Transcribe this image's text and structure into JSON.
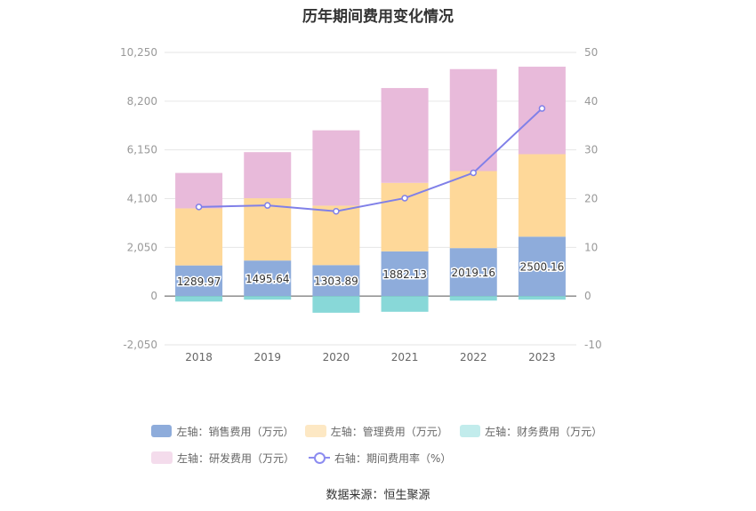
{
  "chart_data": {
    "type": "bar",
    "title": "历年期间费用变化情况",
    "categories": [
      "2018",
      "2019",
      "2020",
      "2021",
      "2022",
      "2023"
    ],
    "stacked": true,
    "series": [
      {
        "name": "左轴：销售费用（万元）",
        "axis": "left",
        "color": "#8eacdb",
        "values": [
          1289.97,
          1495.64,
          1303.89,
          1882.13,
          2019.16,
          2500.16
        ],
        "labels": [
          "1289.97",
          "1495.64",
          "1303.89",
          "1882.13",
          "2019.16",
          "2500.16"
        ]
      },
      {
        "name": "左轴：管理费用（万元）",
        "axis": "left",
        "color": "#fed899",
        "values": [
          2400,
          2620,
          2500,
          2880,
          3240,
          3470
        ]
      },
      {
        "name": "左轴：财务费用（万元）",
        "axis": "left",
        "color": "#88d8d8",
        "values": [
          -230,
          -150,
          -700,
          -660,
          -190,
          -150
        ]
      },
      {
        "name": "左轴：研发费用（万元）",
        "axis": "left",
        "color": "#e8bada",
        "values": [
          1490,
          1940,
          3170,
          3990,
          4290,
          3680
        ]
      },
      {
        "name": "右轴：期间费用率（%）",
        "axis": "right",
        "type": "line",
        "color": "#8080e8",
        "values": [
          18.3,
          18.6,
          17.4,
          20.1,
          25.3,
          38.5
        ]
      }
    ],
    "left_axis": {
      "min": -2050,
      "max": 10250,
      "ticks": [
        "-2,050",
        "0",
        "2,050",
        "4,100",
        "6,150",
        "8,200",
        "10,250"
      ]
    },
    "right_axis": {
      "min": -10,
      "max": 50,
      "ticks": [
        "-10",
        "0",
        "10",
        "20",
        "30",
        "40",
        "50"
      ]
    },
    "grid": true,
    "legend_position": "bottom"
  },
  "legend": {
    "items": [
      {
        "label": "左轴：销售费用（万元）",
        "color": "#8eacdb",
        "kind": "box"
      },
      {
        "label": "左轴：管理费用（万元）",
        "color": "#fde8c4",
        "kind": "box"
      },
      {
        "label": "左轴：财务费用（万元）",
        "color": "#c2ecec",
        "kind": "box"
      },
      {
        "label": "左轴：研发费用（万元）",
        "color": "#f4dcec",
        "kind": "box"
      },
      {
        "label": "右轴：期间费用率（%）",
        "color": "#8c8cf0",
        "kind": "line"
      }
    ]
  },
  "footer": {
    "source": "数据来源：恒生聚源"
  }
}
